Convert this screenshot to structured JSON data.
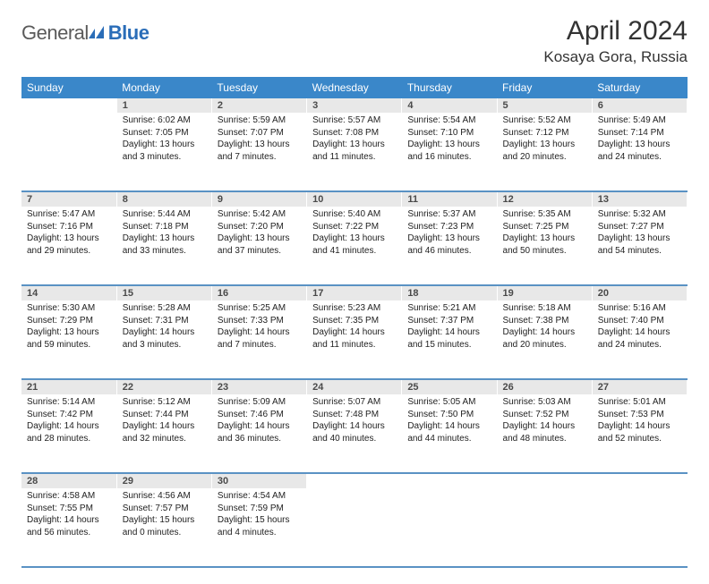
{
  "logo": {
    "part1": "General",
    "part2": "Blue"
  },
  "title": "April 2024",
  "location": "Kosaya Gora, Russia",
  "colors": {
    "header_bg": "#3a87c9",
    "daynum_bg": "#e8e8e8",
    "row_border": "#5a92c4",
    "logo_gray": "#5a5a5a",
    "logo_blue": "#2a6db8"
  },
  "weekdays": [
    "Sunday",
    "Monday",
    "Tuesday",
    "Wednesday",
    "Thursday",
    "Friday",
    "Saturday"
  ],
  "first_weekday_offset": 1,
  "days": [
    {
      "n": 1,
      "sunrise": "6:02 AM",
      "sunset": "7:05 PM",
      "daylight": "13 hours and 3 minutes."
    },
    {
      "n": 2,
      "sunrise": "5:59 AM",
      "sunset": "7:07 PM",
      "daylight": "13 hours and 7 minutes."
    },
    {
      "n": 3,
      "sunrise": "5:57 AM",
      "sunset": "7:08 PM",
      "daylight": "13 hours and 11 minutes."
    },
    {
      "n": 4,
      "sunrise": "5:54 AM",
      "sunset": "7:10 PM",
      "daylight": "13 hours and 16 minutes."
    },
    {
      "n": 5,
      "sunrise": "5:52 AM",
      "sunset": "7:12 PM",
      "daylight": "13 hours and 20 minutes."
    },
    {
      "n": 6,
      "sunrise": "5:49 AM",
      "sunset": "7:14 PM",
      "daylight": "13 hours and 24 minutes."
    },
    {
      "n": 7,
      "sunrise": "5:47 AM",
      "sunset": "7:16 PM",
      "daylight": "13 hours and 29 minutes."
    },
    {
      "n": 8,
      "sunrise": "5:44 AM",
      "sunset": "7:18 PM",
      "daylight": "13 hours and 33 minutes."
    },
    {
      "n": 9,
      "sunrise": "5:42 AM",
      "sunset": "7:20 PM",
      "daylight": "13 hours and 37 minutes."
    },
    {
      "n": 10,
      "sunrise": "5:40 AM",
      "sunset": "7:22 PM",
      "daylight": "13 hours and 41 minutes."
    },
    {
      "n": 11,
      "sunrise": "5:37 AM",
      "sunset": "7:23 PM",
      "daylight": "13 hours and 46 minutes."
    },
    {
      "n": 12,
      "sunrise": "5:35 AM",
      "sunset": "7:25 PM",
      "daylight": "13 hours and 50 minutes."
    },
    {
      "n": 13,
      "sunrise": "5:32 AM",
      "sunset": "7:27 PM",
      "daylight": "13 hours and 54 minutes."
    },
    {
      "n": 14,
      "sunrise": "5:30 AM",
      "sunset": "7:29 PM",
      "daylight": "13 hours and 59 minutes."
    },
    {
      "n": 15,
      "sunrise": "5:28 AM",
      "sunset": "7:31 PM",
      "daylight": "14 hours and 3 minutes."
    },
    {
      "n": 16,
      "sunrise": "5:25 AM",
      "sunset": "7:33 PM",
      "daylight": "14 hours and 7 minutes."
    },
    {
      "n": 17,
      "sunrise": "5:23 AM",
      "sunset": "7:35 PM",
      "daylight": "14 hours and 11 minutes."
    },
    {
      "n": 18,
      "sunrise": "5:21 AM",
      "sunset": "7:37 PM",
      "daylight": "14 hours and 15 minutes."
    },
    {
      "n": 19,
      "sunrise": "5:18 AM",
      "sunset": "7:38 PM",
      "daylight": "14 hours and 20 minutes."
    },
    {
      "n": 20,
      "sunrise": "5:16 AM",
      "sunset": "7:40 PM",
      "daylight": "14 hours and 24 minutes."
    },
    {
      "n": 21,
      "sunrise": "5:14 AM",
      "sunset": "7:42 PM",
      "daylight": "14 hours and 28 minutes."
    },
    {
      "n": 22,
      "sunrise": "5:12 AM",
      "sunset": "7:44 PM",
      "daylight": "14 hours and 32 minutes."
    },
    {
      "n": 23,
      "sunrise": "5:09 AM",
      "sunset": "7:46 PM",
      "daylight": "14 hours and 36 minutes."
    },
    {
      "n": 24,
      "sunrise": "5:07 AM",
      "sunset": "7:48 PM",
      "daylight": "14 hours and 40 minutes."
    },
    {
      "n": 25,
      "sunrise": "5:05 AM",
      "sunset": "7:50 PM",
      "daylight": "14 hours and 44 minutes."
    },
    {
      "n": 26,
      "sunrise": "5:03 AM",
      "sunset": "7:52 PM",
      "daylight": "14 hours and 48 minutes."
    },
    {
      "n": 27,
      "sunrise": "5:01 AM",
      "sunset": "7:53 PM",
      "daylight": "14 hours and 52 minutes."
    },
    {
      "n": 28,
      "sunrise": "4:58 AM",
      "sunset": "7:55 PM",
      "daylight": "14 hours and 56 minutes."
    },
    {
      "n": 29,
      "sunrise": "4:56 AM",
      "sunset": "7:57 PM",
      "daylight": "15 hours and 0 minutes."
    },
    {
      "n": 30,
      "sunrise": "4:54 AM",
      "sunset": "7:59 PM",
      "daylight": "15 hours and 4 minutes."
    }
  ],
  "labels": {
    "sunrise": "Sunrise:",
    "sunset": "Sunset:",
    "daylight": "Daylight:"
  }
}
